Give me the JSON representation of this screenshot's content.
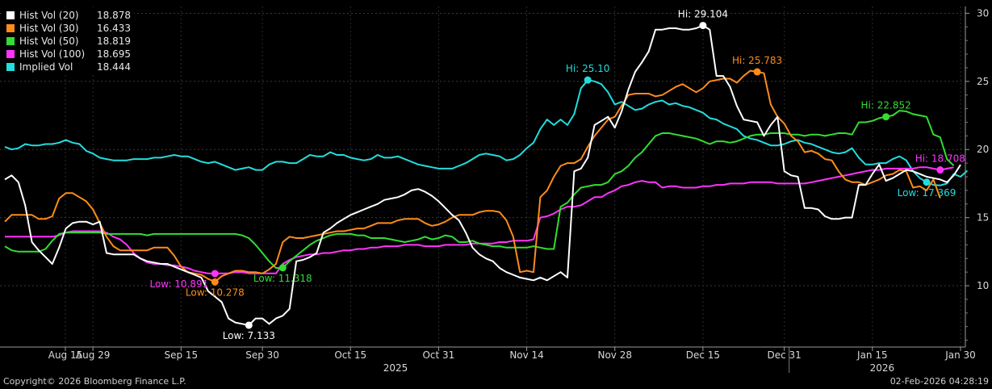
{
  "chart_data": {
    "type": "line",
    "ylim": [
      5.5,
      30.5
    ],
    "y_ticks": [
      10,
      15,
      20,
      25,
      30
    ],
    "x_ticks": [
      "Aug 15",
      "Aug 29",
      "Sep 15",
      "Sep 30",
      "Oct 15",
      "Oct 31",
      "Nov 14",
      "Nov 28",
      "Dec 15",
      "Dec 31",
      "Jan 15",
      "Jan 30"
    ],
    "x_year_labels": [
      "2025",
      "2026"
    ],
    "grid": true,
    "legend_position": "top-left",
    "series": [
      {
        "name": "Hist Vol (20)",
        "last": "18.878",
        "color": "#ffffff",
        "values": [
          17.8,
          18.1,
          17.6,
          15.9,
          13.2,
          12.6,
          12.1,
          11.6,
          12.8,
          14.2,
          14.6,
          14.7,
          14.7,
          14.5,
          14.7,
          12.4,
          12.3,
          12.3,
          12.3,
          12.3,
          12.0,
          11.8,
          11.7,
          11.6,
          11.6,
          11.4,
          11.2,
          11.0,
          10.8,
          10.6,
          9.6,
          9.2,
          8.8,
          7.6,
          7.3,
          7.2,
          7.1,
          7.6,
          7.6,
          7.2,
          7.6,
          7.8,
          8.3,
          11.8,
          11.9,
          12.1,
          12.4,
          13.9,
          14.2,
          14.6,
          14.9,
          15.2,
          15.4,
          15.6,
          15.8,
          16.0,
          16.3,
          16.4,
          16.5,
          16.7,
          17.0,
          17.1,
          16.9,
          16.6,
          16.2,
          15.7,
          15.2,
          14.8,
          13.9,
          12.8,
          12.3,
          12.0,
          11.8,
          11.3,
          11.0,
          10.8,
          10.6,
          10.5,
          10.4,
          10.6,
          10.4,
          10.7,
          11.0,
          10.6,
          18.4,
          18.6,
          19.4,
          21.8,
          22.1,
          22.4,
          21.6,
          22.8,
          24.4,
          25.7,
          26.4,
          27.2,
          28.8,
          28.8,
          28.9,
          28.9,
          28.8,
          28.8,
          28.9,
          29.104,
          28.8,
          25.4,
          25.4,
          24.6,
          23.2,
          22.2,
          22.1,
          22.0,
          21.0,
          21.8,
          22.4,
          18.4,
          18.1,
          18.0,
          15.7,
          15.7,
          15.6,
          15.1,
          14.9,
          14.9,
          15.0,
          15.0,
          17.4,
          17.4,
          18.2,
          18.9,
          17.7,
          17.9,
          18.2,
          18.5,
          18.4,
          18.2,
          18.0,
          17.9,
          17.8,
          17.6,
          18.1,
          18.878
        ]
      },
      {
        "name": "Hist Vol (30)",
        "last": "16.433",
        "color": "#ff8c1a",
        "values": [
          14.7,
          15.2,
          15.2,
          15.2,
          15.2,
          14.9,
          14.9,
          15.1,
          16.4,
          16.8,
          16.8,
          16.5,
          16.2,
          15.6,
          14.6,
          13.6,
          12.9,
          12.6,
          12.6,
          12.6,
          12.6,
          12.6,
          12.8,
          12.8,
          12.8,
          12.2,
          11.4,
          11.0,
          10.9,
          10.8,
          10.5,
          10.278,
          10.7,
          10.9,
          11.1,
          11.1,
          11.0,
          11.0,
          10.9,
          11.2,
          11.6,
          13.2,
          13.6,
          13.5,
          13.5,
          13.6,
          13.7,
          13.8,
          13.9,
          14.0,
          14.0,
          14.1,
          14.2,
          14.2,
          14.4,
          14.6,
          14.6,
          14.6,
          14.8,
          14.9,
          14.9,
          14.9,
          14.6,
          14.4,
          14.5,
          14.7,
          15.0,
          15.2,
          15.2,
          15.2,
          15.4,
          15.5,
          15.5,
          15.4,
          14.8,
          13.6,
          11.0,
          11.1,
          11.0,
          16.5,
          17.0,
          18.0,
          18.8,
          19.0,
          19.0,
          19.3,
          20.2,
          21.0,
          21.6,
          22.2,
          22.4,
          23.2,
          24.0,
          24.1,
          24.1,
          24.1,
          23.9,
          24.0,
          24.3,
          24.6,
          24.8,
          24.5,
          24.2,
          24.5,
          25.0,
          25.1,
          25.2,
          25.2,
          24.9,
          25.4,
          25.783,
          25.7,
          25.6,
          23.3,
          22.4,
          21.9,
          21.0,
          20.6,
          19.8,
          19.9,
          19.7,
          19.3,
          19.2,
          18.4,
          17.8,
          17.6,
          17.6,
          17.4,
          17.6,
          17.8,
          18.1,
          18.2,
          18.5,
          18.4,
          17.2,
          17.3,
          17.0,
          17.8,
          16.433
        ]
      },
      {
        "name": "Hist Vol (50)",
        "last": "18.819",
        "color": "#33dd33",
        "values": [
          12.9,
          12.6,
          12.5,
          12.5,
          12.5,
          12.5,
          12.7,
          13.3,
          13.8,
          13.9,
          13.9,
          13.9,
          13.9,
          13.9,
          13.9,
          13.8,
          13.8,
          13.8,
          13.8,
          13.8,
          13.8,
          13.7,
          13.8,
          13.8,
          13.8,
          13.8,
          13.8,
          13.8,
          13.8,
          13.8,
          13.8,
          13.8,
          13.8,
          13.8,
          13.8,
          13.7,
          13.5,
          13.0,
          12.4,
          11.8,
          11.3,
          11.318,
          11.8,
          12.2,
          12.6,
          13.0,
          13.3,
          13.5,
          13.7,
          13.8,
          13.8,
          13.8,
          13.7,
          13.7,
          13.5,
          13.5,
          13.5,
          13.4,
          13.3,
          13.2,
          13.3,
          13.4,
          13.6,
          13.4,
          13.5,
          13.7,
          13.6,
          13.2,
          13.2,
          13.3,
          13.1,
          13.0,
          12.9,
          12.9,
          12.8,
          12.8,
          12.8,
          12.8,
          12.9,
          12.8,
          12.7,
          12.7,
          15.8,
          16.1,
          16.7,
          17.2,
          17.3,
          17.4,
          17.4,
          17.6,
          18.2,
          18.4,
          18.8,
          19.4,
          19.8,
          20.4,
          21.0,
          21.2,
          21.2,
          21.1,
          21.0,
          20.9,
          20.8,
          20.6,
          20.4,
          20.6,
          20.6,
          20.5,
          20.6,
          20.8,
          21.0,
          21.1,
          21.1,
          21.2,
          21.2,
          21.2,
          21.1,
          21.1,
          21.0,
          21.1,
          21.1,
          21.0,
          21.1,
          21.2,
          21.2,
          21.1,
          22.0,
          22.0,
          22.1,
          22.3,
          22.4,
          22.5,
          22.852,
          22.8,
          22.6,
          22.5,
          22.4,
          21.1,
          20.9,
          19.3,
          18.819
        ]
      },
      {
        "name": "Hist Vol (100)",
        "last": "18.695",
        "color": "#ff33ff",
        "values": [
          13.6,
          13.6,
          13.6,
          13.6,
          13.6,
          13.6,
          13.6,
          13.6,
          13.7,
          13.9,
          14.0,
          14.0,
          14.0,
          14.0,
          14.0,
          13.9,
          13.6,
          13.4,
          13.0,
          12.4,
          12.0,
          11.7,
          11.6,
          11.6,
          11.5,
          11.5,
          11.4,
          11.3,
          11.1,
          11.0,
          10.9,
          10.891,
          10.9,
          10.9,
          11.0,
          11.0,
          10.9,
          10.9,
          10.9,
          10.9,
          10.9,
          11.6,
          11.9,
          12.1,
          12.2,
          12.3,
          12.3,
          12.4,
          12.4,
          12.5,
          12.6,
          12.6,
          12.7,
          12.7,
          12.8,
          12.8,
          12.9,
          12.9,
          12.9,
          13.0,
          13.0,
          13.0,
          12.9,
          12.9,
          12.9,
          13.0,
          13.0,
          13.0,
          13.0,
          13.1,
          13.1,
          13.1,
          13.1,
          13.2,
          13.2,
          13.3,
          13.3,
          13.3,
          13.4,
          15.0,
          15.1,
          15.3,
          15.6,
          15.8,
          15.8,
          15.9,
          16.2,
          16.5,
          16.5,
          16.8,
          17.0,
          17.3,
          17.4,
          17.6,
          17.7,
          17.6,
          17.6,
          17.2,
          17.3,
          17.3,
          17.2,
          17.2,
          17.2,
          17.3,
          17.3,
          17.4,
          17.4,
          17.5,
          17.5,
          17.5,
          17.6,
          17.6,
          17.6,
          17.6,
          17.5,
          17.5,
          17.5,
          17.5,
          17.5,
          17.6,
          17.7,
          17.8,
          17.9,
          18.0,
          18.1,
          18.2,
          18.3,
          18.4,
          18.5,
          18.5,
          18.6,
          18.6,
          18.6,
          18.6,
          18.6,
          18.7,
          18.7,
          18.6,
          18.5,
          18.6,
          18.695
        ]
      },
      {
        "name": "Implied Vol",
        "last": "18.444",
        "color": "#22dddd",
        "values": [
          20.2,
          20.0,
          20.1,
          20.4,
          20.3,
          20.3,
          20.4,
          20.4,
          20.5,
          20.7,
          20.5,
          20.4,
          19.9,
          19.7,
          19.4,
          19.3,
          19.2,
          19.2,
          19.2,
          19.3,
          19.3,
          19.3,
          19.4,
          19.4,
          19.5,
          19.6,
          19.5,
          19.5,
          19.3,
          19.1,
          19.0,
          19.1,
          18.9,
          18.7,
          18.5,
          18.6,
          18.7,
          18.5,
          18.5,
          18.9,
          19.1,
          19.1,
          19.0,
          19.0,
          19.3,
          19.6,
          19.5,
          19.5,
          19.8,
          19.6,
          19.6,
          19.4,
          19.3,
          19.2,
          19.3,
          19.6,
          19.4,
          19.4,
          19.5,
          19.3,
          19.1,
          18.9,
          18.8,
          18.7,
          18.6,
          18.6,
          18.6,
          18.8,
          19.0,
          19.3,
          19.6,
          19.7,
          19.6,
          19.5,
          19.2,
          19.3,
          19.6,
          20.1,
          20.5,
          21.5,
          22.2,
          21.8,
          22.2,
          21.8,
          22.6,
          24.5,
          25.1,
          25.0,
          24.8,
          24.2,
          23.3,
          23.5,
          23.2,
          22.9,
          23.0,
          23.3,
          23.5,
          23.6,
          23.3,
          23.4,
          23.2,
          23.1,
          22.9,
          22.7,
          22.3,
          22.2,
          21.9,
          21.7,
          21.5,
          21.0,
          20.8,
          20.7,
          20.5,
          20.3,
          20.3,
          20.4,
          20.6,
          20.7,
          20.5,
          20.4,
          20.2,
          20.0,
          19.8,
          19.7,
          19.8,
          20.1,
          19.4,
          18.9,
          18.9,
          19.0,
          19.0,
          19.3,
          19.5,
          19.2,
          18.4,
          17.9,
          17.6,
          17.4,
          17.369,
          17.5,
          18.2,
          18.0,
          18.444
        ]
      }
    ],
    "annotations": [
      {
        "label": "Hi: 29.104",
        "series": 0,
        "index": 103,
        "position": "above"
      },
      {
        "label": "Low: 7.133",
        "series": 0,
        "index": 36,
        "position": "below"
      },
      {
        "label": "Hi: 25.783",
        "series": 1,
        "index": 111,
        "position": "above"
      },
      {
        "label": "Low: 10.278",
        "series": 1,
        "index": 31,
        "position": "below"
      },
      {
        "label": "Hi: 22.852",
        "series": 2,
        "index": 130,
        "position": "above"
      },
      {
        "label": "Low: 11.318",
        "series": 2,
        "index": 41,
        "position": "below"
      },
      {
        "label": "Hi: 18.708",
        "series": 3,
        "index": 138,
        "position": "above"
      },
      {
        "label": "Low: 10.891",
        "series": 3,
        "index": 31,
        "position": "below-left"
      },
      {
        "label": "Hi: 25.10",
        "series": 4,
        "index": 86,
        "position": "above"
      },
      {
        "label": "Low: 17.369",
        "series": 4,
        "index": 136,
        "position": "below"
      }
    ]
  },
  "footer": {
    "copyright": "Copyright© 2026 Bloomberg Finance L.P.",
    "timestamp": "02-Feb-2026 04:28:19"
  }
}
